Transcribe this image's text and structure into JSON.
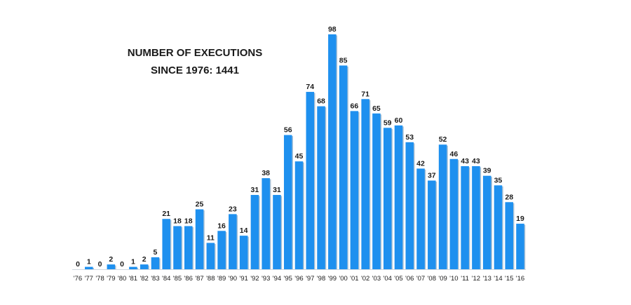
{
  "chart_data": {
    "type": "bar",
    "title": [
      "NUMBER OF EXECUTIONS",
      "SINCE 1976: 1441"
    ],
    "xlabel": "",
    "ylabel": "",
    "ylim": [
      0,
      100
    ],
    "grid": false,
    "categories": [
      "'76",
      "'77",
      "'78",
      "'79",
      "'80",
      "'81",
      "'82",
      "'83",
      "'84",
      "'85",
      "'86",
      "'87",
      "'88",
      "'89",
      "'90",
      "'91",
      "'92",
      "'93",
      "'94",
      "'95",
      "'96",
      "'97",
      "'98",
      "'99",
      "'00",
      "'01",
      "'02",
      "'03",
      "'04",
      "'05",
      "'06",
      "'07",
      "'08",
      "'09",
      "'10",
      "'11",
      "'12",
      "'13",
      "'14",
      "'15",
      "'16"
    ],
    "values": [
      0,
      1,
      0,
      2,
      0,
      1,
      2,
      5,
      21,
      18,
      18,
      25,
      11,
      16,
      23,
      14,
      31,
      38,
      31,
      56,
      45,
      74,
      68,
      98,
      85,
      66,
      71,
      65,
      59,
      60,
      53,
      42,
      37,
      52,
      46,
      43,
      43,
      39,
      35,
      28,
      19
    ],
    "colors": {
      "bar": "#1e90ef",
      "bar_shadow": "#0b4f8a",
      "text": "#1a1a1a"
    }
  }
}
